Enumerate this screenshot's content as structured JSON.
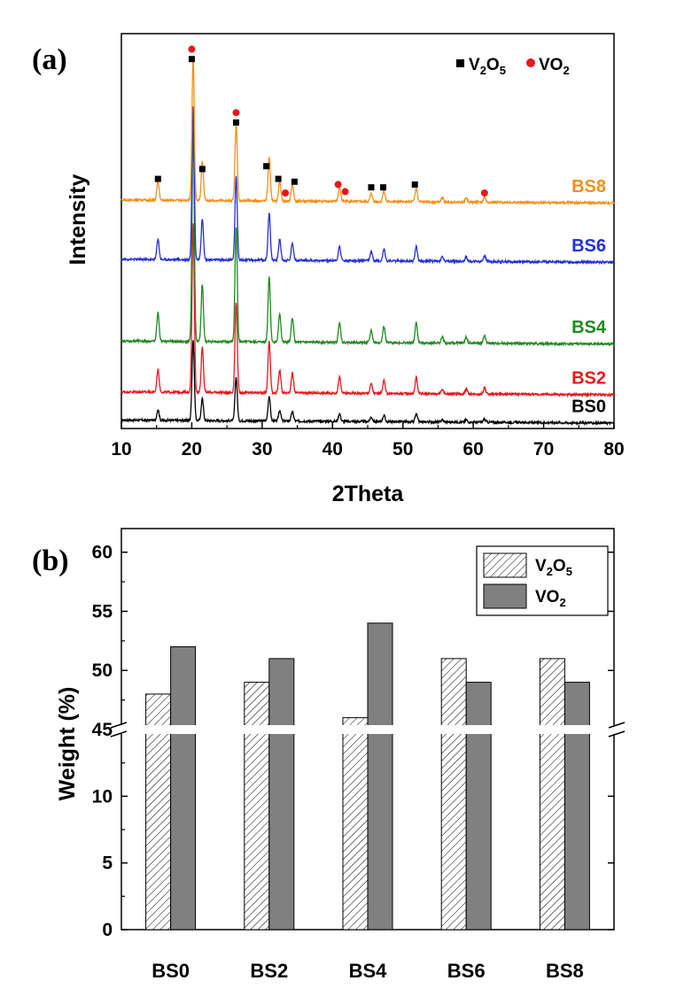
{
  "chart_data": [
    {
      "panel": "(a)",
      "type": "line",
      "xlabel": "2Theta",
      "ylabel": "Intensity",
      "xlim": [
        10,
        80
      ],
      "x_ticks": [
        10,
        20,
        30,
        40,
        50,
        60,
        70,
        80
      ],
      "legend": [
        {
          "name": "V2O5",
          "text": "V",
          "sub1": "2",
          "text2": "O",
          "sub2": "5",
          "marker": "square",
          "color": "#000000"
        },
        {
          "name": "VO2",
          "text": "VO",
          "sub1": "2",
          "marker": "circle",
          "color": "#e8161d"
        }
      ],
      "peaks": [
        {
          "x": 15.2,
          "h": 0.07
        },
        {
          "x": 20.2,
          "h": 0.52
        },
        {
          "x": 21.5,
          "h": 0.14
        },
        {
          "x": 26.3,
          "h": 0.28
        },
        {
          "x": 31.0,
          "h": 0.16
        },
        {
          "x": 32.5,
          "h": 0.07
        },
        {
          "x": 34.3,
          "h": 0.06
        },
        {
          "x": 41.0,
          "h": 0.05
        },
        {
          "x": 45.5,
          "h": 0.03
        },
        {
          "x": 47.3,
          "h": 0.04
        },
        {
          "x": 51.9,
          "h": 0.05
        },
        {
          "x": 55.6,
          "h": 0.015
        },
        {
          "x": 59.0,
          "h": 0.015
        },
        {
          "x": 61.6,
          "h": 0.02
        }
      ],
      "series": [
        {
          "name": "BS0",
          "color": "#000000",
          "baseline": 0.03,
          "scale": 0.55
        },
        {
          "name": "BS2",
          "color": "#e8161d",
          "baseline": 0.13,
          "scale": 1.15
        },
        {
          "name": "BS4",
          "color": "#1e8a1e",
          "baseline": 0.31,
          "scale": 1.45
        },
        {
          "name": "BS6",
          "color": "#2330d6",
          "baseline": 0.6,
          "scale": 1.05
        },
        {
          "name": "BS8",
          "color": "#f0901e",
          "baseline": 0.81,
          "scale": 0.98
        }
      ],
      "peak_markers": [
        {
          "x": 15.2,
          "y": 0.885,
          "type": "V2O5"
        },
        {
          "x": 20.0,
          "y": 1.31,
          "type": "V2O5"
        },
        {
          "x": 20.0,
          "y": 1.345,
          "type": "VO2"
        },
        {
          "x": 21.5,
          "y": 0.92,
          "type": "V2O5"
        },
        {
          "x": 26.3,
          "y": 1.12,
          "type": "VO2"
        },
        {
          "x": 26.3,
          "y": 1.085,
          "type": "V2O5"
        },
        {
          "x": 30.6,
          "y": 0.93,
          "type": "V2O5"
        },
        {
          "x": 32.3,
          "y": 0.885,
          "type": "V2O5"
        },
        {
          "x": 33.3,
          "y": 0.835,
          "type": "VO2"
        },
        {
          "x": 34.6,
          "y": 0.875,
          "type": "V2O5"
        },
        {
          "x": 40.8,
          "y": 0.865,
          "type": "VO2"
        },
        {
          "x": 41.8,
          "y": 0.84,
          "type": "VO2"
        },
        {
          "x": 45.5,
          "y": 0.855,
          "type": "V2O5"
        },
        {
          "x": 47.2,
          "y": 0.855,
          "type": "V2O5"
        },
        {
          "x": 51.7,
          "y": 0.865,
          "type": "V2O5"
        },
        {
          "x": 61.6,
          "y": 0.835,
          "type": "VO2"
        }
      ]
    },
    {
      "panel": "(b)",
      "type": "bar",
      "ylabel": "Weight (%)",
      "categories": [
        "BS0",
        "BS2",
        "BS4",
        "BS6",
        "BS8"
      ],
      "series": [
        {
          "name": "V2O5",
          "legend_text": "V",
          "sub1": "2",
          "legend_text2": "O",
          "sub2": "5",
          "pattern": "hatched",
          "values": [
            48,
            49,
            46,
            51,
            51
          ]
        },
        {
          "name": "VO2",
          "legend_text": "VO",
          "sub1": "2",
          "pattern": "solid",
          "color": "#808080",
          "values": [
            52,
            51,
            54,
            49,
            49
          ]
        }
      ],
      "y_break": [
        15,
        45
      ],
      "lower_ylim": [
        0,
        15
      ],
      "upper_ylim": [
        45,
        62
      ],
      "y_ticks_lower": [
        0,
        5,
        10
      ],
      "y_ticks_upper": [
        45,
        50,
        55,
        60
      ]
    }
  ]
}
